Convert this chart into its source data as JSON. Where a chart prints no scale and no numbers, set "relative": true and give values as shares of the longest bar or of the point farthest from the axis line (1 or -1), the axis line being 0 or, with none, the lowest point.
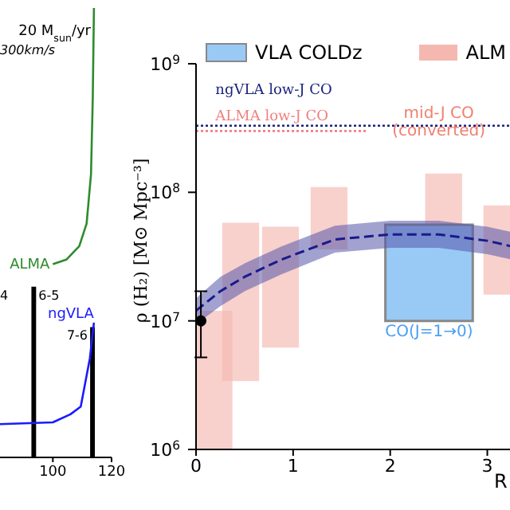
{
  "chart_data": [
    {
      "type": "line",
      "relative": true,
      "xlim": [
        82,
        120
      ],
      "xticks": [
        100,
        120
      ],
      "tick_labels": "x",
      "series": [
        {
          "name": "ALMA",
          "color": "#2e8b2e",
          "x": [
            100,
            104.6,
            109,
            111.5,
            113,
            113.6,
            114
          ],
          "values": [
            0.43,
            0.44,
            0.47,
            0.52,
            0.63,
            0.8,
            1.0
          ]
        },
        {
          "name": "ngVLA",
          "color": "#1a1aff",
          "x": [
            82,
            100,
            106,
            109.5,
            112.6,
            114
          ],
          "values": [
            0.074,
            0.078,
            0.096,
            0.113,
            0.22,
            0.3
          ]
        },
        {
          "type": "bar",
          "color": "#000000",
          "x": [
            93.5,
            113.5
          ],
          "values": [
            0.38,
            0.29
          ]
        }
      ],
      "annotations": [
        "20 M$_{sun}$/yr",
        "300km/s",
        "4",
        {
          "text": "6-5",
          "x": 93.5,
          "y": 0.38
        },
        {
          "text": "7-6",
          "x": 113.5,
          "y": 0.29
        }
      ]
    },
    {
      "type": "bar",
      "xlim": [
        0,
        3.25
      ],
      "ylim": [
        1000000,
        1000000000
      ],
      "log": true,
      "legend": "top",
      "xlabel": "R",
      "ylabel": "ρ (H₂) [M⊙ Mpc⁻³]",
      "xticks": [
        0,
        1,
        2,
        3
      ],
      "yticks": [
        {
          "value": 1000000,
          "label": "10$^{6}$"
        },
        {
          "value": 10000000,
          "label": "10$^{7}$"
        },
        {
          "value": 100000000,
          "label": "10$^{8}$"
        },
        {
          "value": 1000000000,
          "label": "10$^{9}$"
        }
      ],
      "series": [
        {
          "name": "ALM",
          "color": "#f4b8b0",
          "x": [
            0.185,
            0.46,
            0.87,
            1.37,
            2.55,
            3.15
          ],
          "base": [
            1000000,
            3400000,
            6200000,
            36000000,
            31000000,
            16000000
          ],
          "values": [
            11000000,
            54600000,
            47800000,
            74000000,
            109000000,
            63000000
          ]
        },
        {
          "name": "VLA COLDz",
          "color": "#99c9f5",
          "x": [
            2.4
          ],
          "base": [
            10000000
          ],
          "values": [
            46000000
          ]
        },
        {
          "type": "line",
          "color": "#1a1a8c",
          "line_style": "dashed",
          "x": [
            0,
            0.25,
            0.5,
            0.88,
            1.43,
            2.0,
            2.5,
            3.0,
            3.25
          ],
          "values": [
            12000000,
            17000000,
            22000000,
            30000000,
            43000000,
            47000000,
            47000000,
            42000000,
            38000000
          ],
          "lower": [
            9400000,
            13000000,
            17000000,
            23000000,
            34000000,
            37000000,
            37000000,
            33000000,
            30000000
          ],
          "upper": [
            15000000,
            22000000,
            28000000,
            38000000,
            55000000,
            60000000,
            60000000,
            54000000,
            49000000
          ]
        },
        {
          "type": "line",
          "name": "ngVLA low-J CO",
          "color": "#1a237e",
          "line_style": "dotted",
          "x": [
            0,
            3.25
          ],
          "values": [
            330000000,
            330000000
          ]
        },
        {
          "type": "line",
          "name": "ALMA low-J CO",
          "color": "#f08080",
          "line_style": "dotted",
          "x": [
            0,
            1.75
          ],
          "values": [
            300000000,
            300000000
          ]
        },
        {
          "type": "scatter",
          "color": "#000000",
          "marker": "circle",
          "x": [
            0.05
          ],
          "values": [
            10000000
          ],
          "errors": [
            [
              5200000,
              17000000
            ]
          ]
        }
      ],
      "annotations": [
        "mid-J CO\n(converted)",
        "CO(J=1→0)"
      ]
    }
  ]
}
